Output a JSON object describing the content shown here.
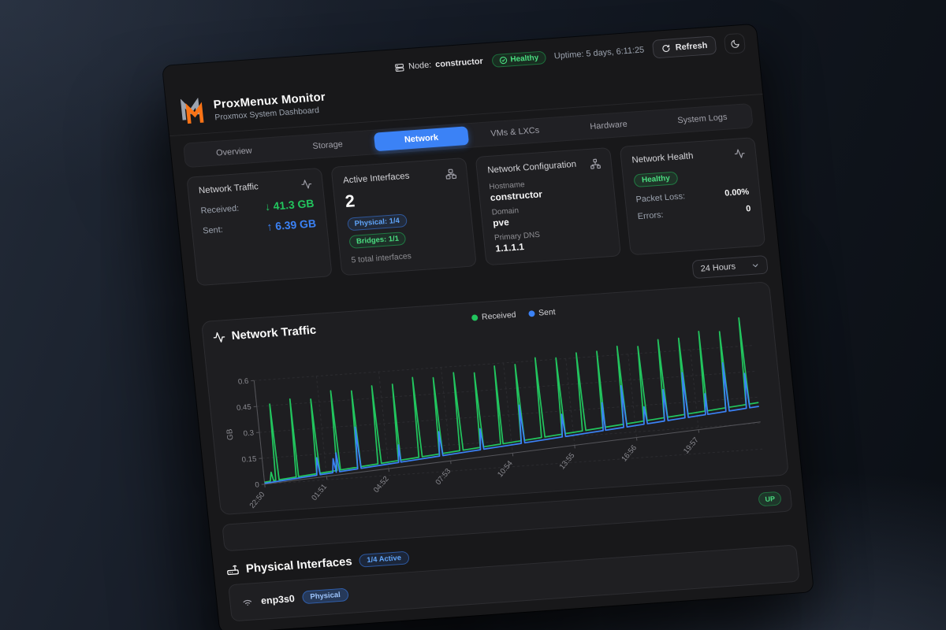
{
  "topbar": {
    "node_label": "Node:",
    "node_name": "constructor",
    "health_status": "Healthy",
    "uptime": "Uptime: 5 days, 6:11:25",
    "refresh_label": "Refresh"
  },
  "header": {
    "title": "ProxMenux Monitor",
    "subtitle": "Proxmox System Dashboard"
  },
  "tabs": {
    "active_index": 2,
    "items": [
      {
        "label": "Overview"
      },
      {
        "label": "Storage"
      },
      {
        "label": "Network"
      },
      {
        "label": "VMs & LXCs"
      },
      {
        "label": "Hardware"
      },
      {
        "label": "System Logs"
      }
    ]
  },
  "cards": {
    "traffic": {
      "title": "Network Traffic",
      "received_label": "Received:",
      "received_arrow": "↓",
      "received_value": "41.3 GB",
      "sent_label": "Sent:",
      "sent_arrow": "↑",
      "sent_value": "6.39 GB"
    },
    "interfaces": {
      "title": "Active Interfaces",
      "count": "2",
      "physical_badge": "Physical: 1/4",
      "bridges_badge": "Bridges: 1/1",
      "total_label": "5 total interfaces"
    },
    "config": {
      "title": "Network Configuration",
      "hostname_label": "Hostname",
      "hostname_value": "constructor",
      "domain_label": "Domain",
      "domain_value": "pve",
      "dns_label": "Primary DNS",
      "dns_value": "1.1.1.1"
    },
    "health": {
      "title": "Network Health",
      "status_badge": "Healthy",
      "packet_loss_label": "Packet Loss:",
      "packet_loss_value": "0.00%",
      "errors_label": "Errors:",
      "errors_value": "0"
    }
  },
  "toolbar": {
    "time_range": "24 Hours"
  },
  "chart_card": {
    "title": "Network Traffic"
  },
  "chart_data": {
    "type": "line",
    "title": "Network Traffic",
    "ylabel": "GB",
    "ylim": [
      0,
      0.6
    ],
    "y_ticks": [
      0,
      0.15,
      0.3,
      0.45,
      0.6
    ],
    "x_ticks": [
      "22:50",
      "01:51",
      "04:52",
      "07:53",
      "10:54",
      "13:55",
      "16:56",
      "19:57"
    ],
    "x_range_minutes": 1450,
    "grid": "dashed",
    "legend_position": "top-center",
    "series": [
      {
        "name": "Received",
        "color": "#22c55e",
        "baseline_gb": 0.012,
        "trend_gb": 0.1,
        "spikes": [
          {
            "t": 22,
            "v": 0.05
          },
          {
            "t": 38,
            "v": 0.44
          },
          {
            "t": 98,
            "v": 0.45
          },
          {
            "t": 158,
            "v": 0.43
          },
          {
            "t": 218,
            "v": 0.46
          },
          {
            "t": 278,
            "v": 0.44
          },
          {
            "t": 338,
            "v": 0.45
          },
          {
            "t": 398,
            "v": 0.44
          },
          {
            "t": 458,
            "v": 0.46
          },
          {
            "t": 518,
            "v": 0.44
          },
          {
            "t": 578,
            "v": 0.45
          },
          {
            "t": 638,
            "v": 0.43
          },
          {
            "t": 698,
            "v": 0.45
          },
          {
            "t": 758,
            "v": 0.44
          },
          {
            "t": 818,
            "v": 0.46
          },
          {
            "t": 878,
            "v": 0.44
          },
          {
            "t": 938,
            "v": 0.45
          },
          {
            "t": 998,
            "v": 0.44
          },
          {
            "t": 1058,
            "v": 0.45
          },
          {
            "t": 1118,
            "v": 0.43
          },
          {
            "t": 1178,
            "v": 0.45
          },
          {
            "t": 1238,
            "v": 0.44
          },
          {
            "t": 1298,
            "v": 0.46
          },
          {
            "t": 1358,
            "v": 0.44
          },
          {
            "t": 1418,
            "v": 0.5
          }
        ]
      },
      {
        "name": "Sent",
        "color": "#3b82f6",
        "baseline_gb": 0.005,
        "trend_gb": 0.085,
        "spikes": [
          {
            "t": 158,
            "v": 0.1
          },
          {
            "t": 205,
            "v": 0.08
          },
          {
            "t": 215,
            "v": 0.11
          },
          {
            "t": 278,
            "v": 0.24
          },
          {
            "t": 398,
            "v": 0.1
          },
          {
            "t": 518,
            "v": 0.14
          },
          {
            "t": 638,
            "v": 0.12
          },
          {
            "t": 758,
            "v": 0.22
          },
          {
            "t": 878,
            "v": 0.13
          },
          {
            "t": 998,
            "v": 0.16
          },
          {
            "t": 1058,
            "v": 0.24
          },
          {
            "t": 1118,
            "v": 0.1
          },
          {
            "t": 1178,
            "v": 0.18
          },
          {
            "t": 1238,
            "v": 0.26
          },
          {
            "t": 1298,
            "v": 0.12
          },
          {
            "t": 1358,
            "v": 0.28
          },
          {
            "t": 1418,
            "v": 0.2
          }
        ]
      }
    ]
  },
  "status_row": {
    "badge": "UP"
  },
  "physical_section": {
    "title": "Physical Interfaces",
    "active_badge": "1/4 Active",
    "interfaces": [
      {
        "name": "enp3s0",
        "type_badge": "Physical"
      }
    ]
  },
  "colors": {
    "accent_blue": "#3b82f6",
    "green": "#22c55e",
    "logo_orange": "#f97316",
    "logo_gray": "#9ca3af"
  }
}
